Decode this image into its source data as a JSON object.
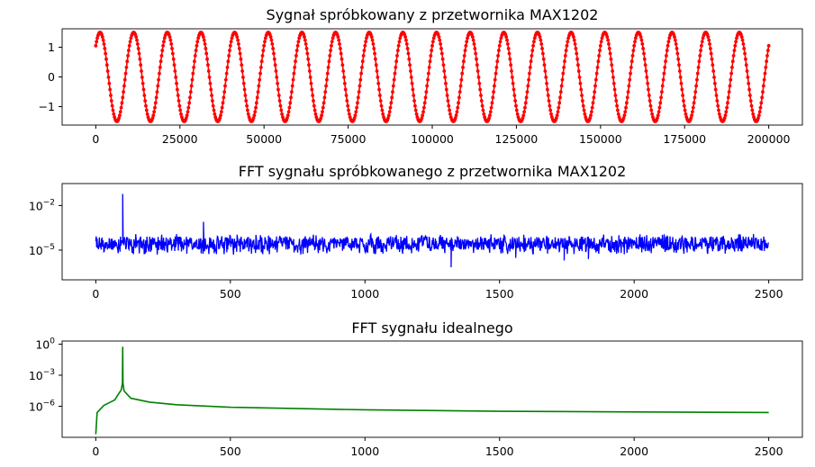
{
  "chart_data": [
    {
      "type": "scatter",
      "title": "Sygnał spróbkowany z przetwornika MAX1202",
      "xlabel": "",
      "ylabel": "",
      "xlim": [
        -10000,
        210000
      ],
      "ylim": [
        -1.62,
        1.62
      ],
      "x_ticks": [
        0,
        25000,
        50000,
        75000,
        100000,
        125000,
        150000,
        175000,
        200000
      ],
      "x_tick_labels": [
        "0",
        "25000",
        "50000",
        "75000",
        "100000",
        "125000",
        "150000",
        "175000",
        "200000"
      ],
      "y_ticks": [
        1,
        0,
        -1
      ],
      "y_tick_labels": [
        "1",
        "0",
        "−1"
      ],
      "grid": false,
      "color": "#ff0000",
      "marker": "dot-line",
      "signal": {
        "shape": "clipped sine",
        "amplitude": 1.5,
        "period": 10000,
        "x_start": 0,
        "x_end": 200000,
        "y_at_start": 1.05,
        "y_at_end": 0.75
      }
    },
    {
      "type": "line",
      "title": "FFT sygnału spróbkowanego z przetwornika MAX1202",
      "xlabel": "",
      "ylabel": "",
      "xlim": [
        -125,
        2625
      ],
      "y_scale": "log",
      "ylim": [
        1e-07,
        0.3
      ],
      "x_ticks": [
        0,
        500,
        1000,
        1500,
        2000,
        2500
      ],
      "x_tick_labels": [
        "0",
        "500",
        "1000",
        "1500",
        "2000",
        "2500"
      ],
      "y_ticks": [
        0.01,
        1e-05
      ],
      "y_tick_labels": [
        {
          "base": "10",
          "exp": "−2"
        },
        {
          "base": "10",
          "exp": "−5"
        }
      ],
      "grid": false,
      "color": "#0000ff",
      "noise_floor": {
        "typical": 3e-05,
        "low": 5e-06,
        "high": 0.00012
      },
      "peaks": [
        {
          "x": 100,
          "y": 0.06
        },
        {
          "x": 300,
          "y": 0.00012
        },
        {
          "x": 400,
          "y": 0.0008
        },
        {
          "x": 500,
          "y": 9e-05
        },
        {
          "x": 200,
          "y": 8e-05
        }
      ],
      "dips": [
        {
          "x": 1320,
          "y": 7e-07
        },
        {
          "x": 1740,
          "y": 2e-06
        },
        {
          "x": 1830,
          "y": 2.5e-06
        },
        {
          "x": 1560,
          "y": 3e-06
        }
      ]
    },
    {
      "type": "line",
      "title": "FFT sygnału idealnego",
      "xlabel": "",
      "ylabel": "",
      "xlim": [
        -125,
        2625
      ],
      "y_scale": "log",
      "ylim": [
        1e-09,
        2
      ],
      "x_ticks": [
        0,
        500,
        1000,
        1500,
        2000,
        2500
      ],
      "x_tick_labels": [
        "0",
        "500",
        "1000",
        "1500",
        "2000",
        "2500"
      ],
      "y_ticks": [
        1,
        0.001,
        1e-06
      ],
      "y_tick_labels": [
        {
          "base": "10",
          "exp": "0"
        },
        {
          "base": "10",
          "exp": "−3"
        },
        {
          "base": "10",
          "exp": "−6"
        }
      ],
      "grid": false,
      "color": "#008000",
      "curve": [
        {
          "x": 0,
          "y": 2e-09
        },
        {
          "x": 5,
          "y": 2.5e-07
        },
        {
          "x": 30,
          "y": 1.2e-06
        },
        {
          "x": 70,
          "y": 4e-06
        },
        {
          "x": 95,
          "y": 4e-05
        },
        {
          "x": 99,
          "y": 0.00018
        },
        {
          "x": 100,
          "y": 0.5
        },
        {
          "x": 101,
          "y": 0.00018
        },
        {
          "x": 105,
          "y": 3e-05
        },
        {
          "x": 130,
          "y": 6e-06
        },
        {
          "x": 200,
          "y": 2.5e-06
        },
        {
          "x": 300,
          "y": 1.4e-06
        },
        {
          "x": 500,
          "y": 8e-07
        },
        {
          "x": 1000,
          "y": 4.5e-07
        },
        {
          "x": 1500,
          "y": 3.3e-07
        },
        {
          "x": 2000,
          "y": 2.8e-07
        },
        {
          "x": 2500,
          "y": 2.5e-07
        }
      ]
    }
  ]
}
